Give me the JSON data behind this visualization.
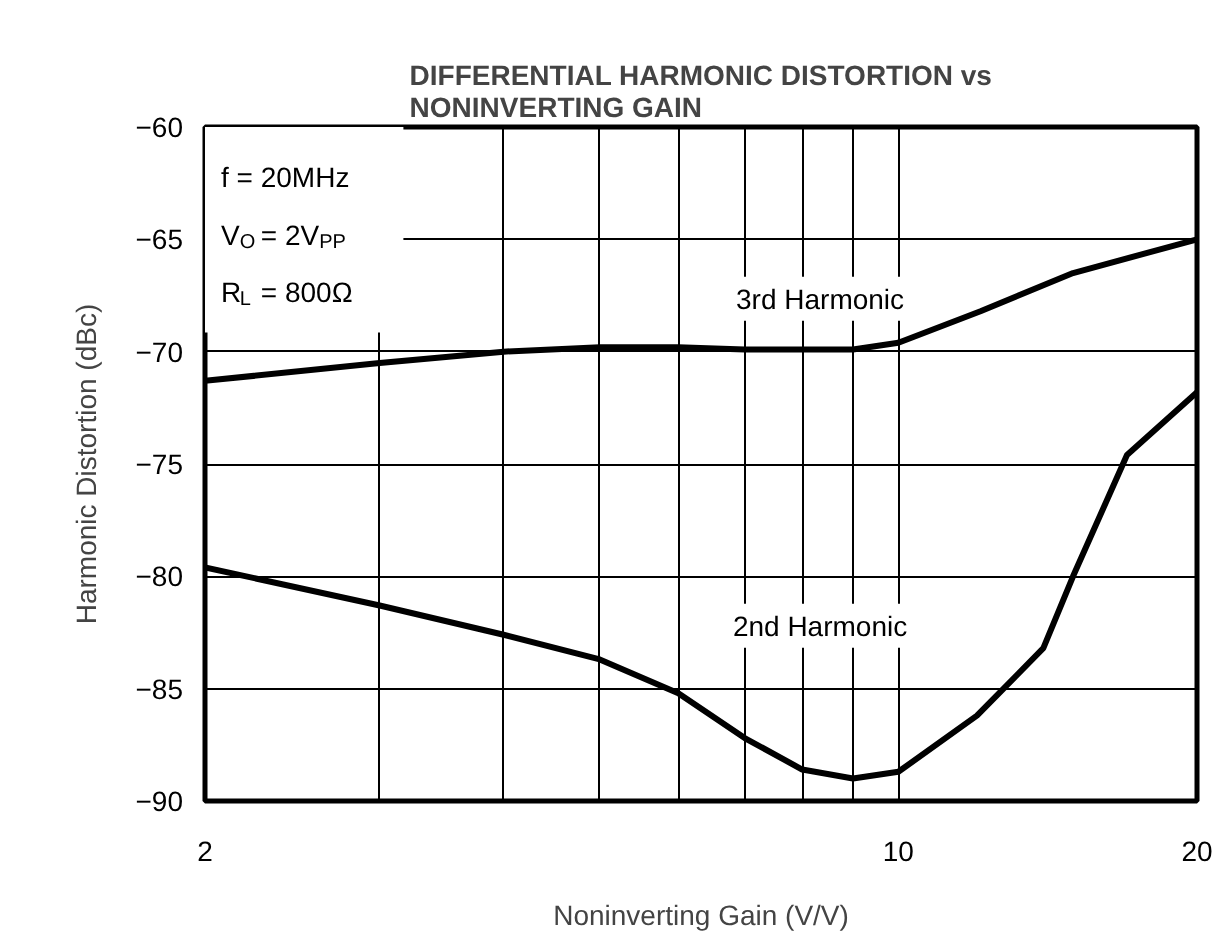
{
  "chart_data": {
    "type": "line",
    "title": "DIFFERENTIAL HARMONIC DISTORTION vs\nNONINVERTING GAIN",
    "xlabel": "Noninverting Gain (V/V)",
    "ylabel": "Harmonic Distortion (dBc)",
    "log": "x",
    "grid": true,
    "marker": "none",
    "line_style": "solid",
    "xlim": [
      2,
      20
    ],
    "xticks": [
      2,
      {
        "value": 3,
        "label": null
      },
      {
        "value": 4,
        "label": null
      },
      {
        "value": 5,
        "label": null
      },
      {
        "value": 6,
        "label": null
      },
      {
        "value": 7,
        "label": null
      },
      {
        "value": 8,
        "label": null
      },
      {
        "value": 9,
        "label": null
      },
      10,
      20
    ],
    "ylim": [
      -90,
      -60
    ],
    "yticks": [
      -90,
      -85,
      -80,
      -75,
      -70,
      -65,
      -60
    ],
    "annotations": [
      "f = 20MHz",
      "V$_{O}$ = 2V$_{PP}$",
      "R$_{L}$ = 800Ω"
    ],
    "series": [
      {
        "name": "3rd Harmonic",
        "color": "#000000",
        "x": [
          2,
          3,
          4,
          5,
          6,
          7,
          8,
          9,
          10,
          12.1,
          15,
          20
        ],
        "values": [
          -71.3,
          -70.5,
          -70.0,
          -69.8,
          -69.8,
          -69.9,
          -69.9,
          -69.9,
          -69.6,
          -68.2,
          -66.5,
          -65.0
        ]
      },
      {
        "name": "2nd Harmonic",
        "color": "#000000",
        "x": [
          2,
          3,
          4,
          5,
          6,
          7,
          8,
          9,
          10,
          12,
          14,
          15,
          17,
          20
        ],
        "values": [
          -79.6,
          -81.3,
          -82.6,
          -83.7,
          -85.2,
          -87.2,
          -88.6,
          -89.0,
          -88.7,
          -86.2,
          -83.2,
          -80.0,
          -74.6,
          -71.8
        ]
      }
    ]
  }
}
